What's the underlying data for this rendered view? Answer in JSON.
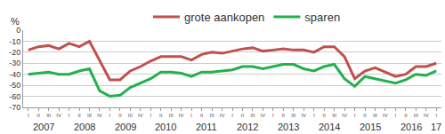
{
  "chart_data": {
    "type": "line",
    "ylabel": "%",
    "categories": [
      "I",
      "II",
      "III",
      "IV",
      "I",
      "II",
      "III",
      "IV",
      "I",
      "II",
      "III",
      "IV",
      "I",
      "II",
      "III",
      "IV",
      "I",
      "II",
      "III",
      "IV",
      "I",
      "II",
      "III",
      "IV",
      "I",
      "II",
      "III",
      "IV",
      "I",
      "II",
      "III",
      "IV",
      "I",
      "II",
      "III",
      "IV",
      "I",
      "II",
      "III",
      "IV",
      "I"
    ],
    "x_groups": [
      "2007",
      "2007",
      "2007",
      "2007",
      "2008",
      "2008",
      "2008",
      "2008",
      "2009",
      "2009",
      "2009",
      "2009",
      "2010",
      "2010",
      "2010",
      "2010",
      "2011",
      "2011",
      "2011",
      "2011",
      "2012",
      "2012",
      "2012",
      "2012",
      "2013",
      "2013",
      "2013",
      "2013",
      "2014",
      "2014",
      "2014",
      "2014",
      "2015",
      "2015",
      "2015",
      "2015",
      "2016",
      "2016",
      "2016",
      "2016",
      "17"
    ],
    "series": [
      {
        "name": "grote aankopen",
        "color": "#c0504d",
        "values": [
          -18,
          -15,
          -14,
          -17,
          -12,
          -15,
          -10,
          -28,
          -45,
          -45,
          -37,
          -33,
          -28,
          -24,
          -24,
          -24,
          -27,
          -22,
          -20,
          -21,
          -19,
          -17,
          -16,
          -19,
          -18,
          -17,
          -18,
          -18,
          -20,
          -15,
          -15,
          -24,
          -44,
          -37,
          -34,
          -38,
          -42,
          -40,
          -33,
          -33,
          -30
        ]
      },
      {
        "name": "sparen",
        "color": "#22b14c",
        "values": [
          -40,
          -39,
          -38,
          -40,
          -40,
          -37,
          -35,
          -55,
          -60,
          -59,
          -52,
          -48,
          -44,
          -38,
          -38,
          -39,
          -42,
          -38,
          -38,
          -37,
          -36,
          -33,
          -33,
          -35,
          -33,
          -31,
          -31,
          -35,
          -37,
          -33,
          -31,
          -44,
          -51,
          -42,
          -44,
          -46,
          -48,
          -45,
          -40,
          -41,
          -37
        ]
      }
    ],
    "ylim": [
      -70,
      0
    ],
    "yticks": [
      -70,
      -60,
      -50,
      -40,
      -30,
      -20,
      -10,
      0
    ],
    "grid": true,
    "legend": "top"
  }
}
